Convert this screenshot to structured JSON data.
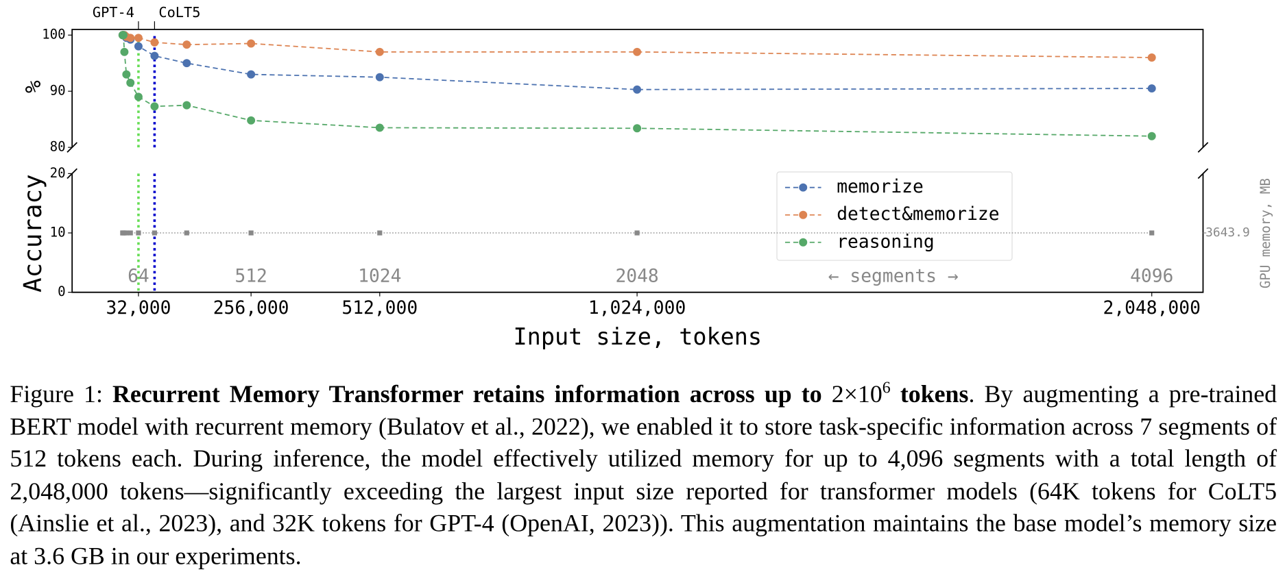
{
  "chart_data": {
    "type": "line",
    "x": [
      500,
      1000,
      2000,
      4000,
      8000,
      16000,
      32000,
      64000,
      128000,
      256000,
      512000,
      1024000,
      2048000
    ],
    "xlim": [
      -100000,
      2150000
    ],
    "xticks": [
      {
        "value": 32000,
        "label": "32,000"
      },
      {
        "value": 256000,
        "label": "256,000"
      },
      {
        "value": 512000,
        "label": "512,000"
      },
      {
        "value": 1024000,
        "label": "1,024,000"
      },
      {
        "value": 2048000,
        "label": "2,048,000"
      }
    ],
    "x2ticks": [
      {
        "value": 32000,
        "label": "64"
      },
      {
        "value": 256000,
        "label": "512"
      },
      {
        "value": 512000,
        "label": "1024"
      },
      {
        "value": 1024000,
        "label": "2048"
      },
      {
        "value": 2048000,
        "label": "4096"
      }
    ],
    "x2label": "← segments →",
    "xlabel": "Input size, tokens",
    "ylabel": "Accuracy",
    "ylabel_top": "%",
    "ylim": [
      80,
      101
    ],
    "yticks": [
      80,
      90,
      100
    ],
    "ylim_lower": [
      0,
      20
    ],
    "yticks_lower": [
      0,
      10,
      20
    ],
    "y2lim": [
      3543.9,
      3743.9
    ],
    "y2ticks": [
      3643.9
    ],
    "y2label": "GPU memory, MB",
    "legend": "lower right",
    "series": [
      {
        "name": "memorize",
        "color": "#4c72b0",
        "values": [
          100,
          100,
          100,
          100,
          99.5,
          99.2,
          98,
          96.3,
          95,
          93,
          92.5,
          90.3,
          90.5
        ]
      },
      {
        "name": "detect&memorize",
        "color": "#dd8452",
        "values": [
          100,
          100,
          100,
          100,
          99.7,
          99.5,
          99.5,
          98.7,
          98.3,
          98.5,
          97,
          97,
          96
        ]
      },
      {
        "name": "reasoning",
        "color": "#55a868",
        "values": [
          100,
          100,
          100,
          97,
          93,
          91.5,
          89,
          87.3,
          87.5,
          84.8,
          83.5,
          83.4,
          82
        ]
      }
    ],
    "gpu_memory": {
      "axis": "y2",
      "color": "#888888",
      "values": [
        3643.9,
        3643.9,
        3643.9,
        3643.9,
        3643.9,
        3643.9,
        3643.9,
        3643.9,
        3643.9,
        3643.9,
        3643.9,
        3643.9,
        3643.9
      ]
    },
    "markers": [
      {
        "label": "GPT-4",
        "x": 32000,
        "color": "#66dd55"
      },
      {
        "label": "CoLT5",
        "x": 64000,
        "color": "#0000cc"
      }
    ]
  },
  "caption": {
    "label": "Figure 1:",
    "title": "Recurrent Memory Transformer retains information across up to",
    "math": "2×10",
    "math_sup": "6",
    "title_end": "tokens",
    "body": ". By augmenting a pre-trained BERT model with recurrent memory (Bulatov et al., 2022), we enabled it to store task-specific information across 7 segments of 512 tokens each. During inference, the model effectively utilized memory for up to 4,096 segments with a total length of 2,048,000 tokens—significantly exceeding the largest input size reported for transformer models (64K tokens for CoLT5 (Ainslie et al., 2023), and 32K tokens for GPT-4 (OpenAI, 2023)). This augmentation maintains the base model’s memory size at 3.6 GB in our experiments."
  }
}
